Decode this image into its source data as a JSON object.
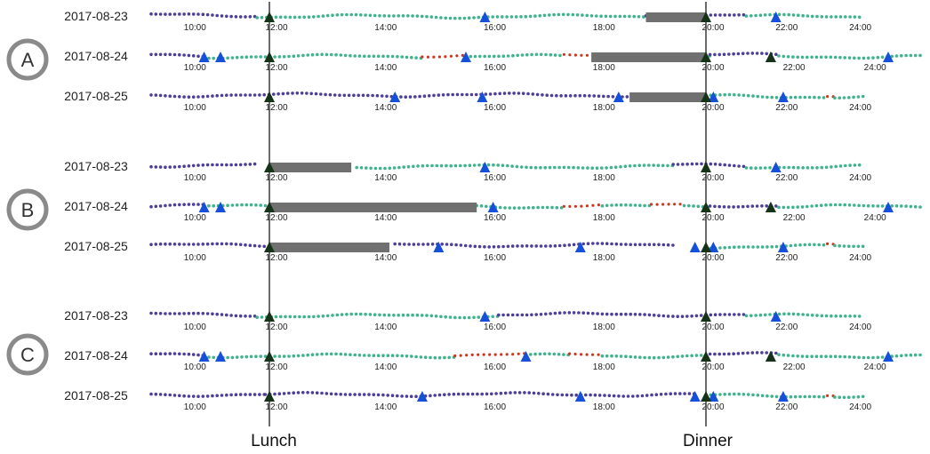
{
  "colors": {
    "purple": "#4b3f9a",
    "teal": "#3fb38c",
    "red": "#d0361f",
    "blue": "#1750d8",
    "black": "#173317",
    "bar": "#707070",
    "axis": "#3a3a3a",
    "circle": "#8a8a8a"
  },
  "meals": {
    "lunch": {
      "label": "Lunch"
    },
    "dinner": {
      "label": "Dinner"
    }
  },
  "panels": [
    {
      "letter": "A",
      "rows": [
        {
          "date": "2017-08-23",
          "start": 9.1,
          "end": 24.3,
          "ticks": [
            10,
            12,
            14,
            16,
            18,
            20,
            22,
            24
          ],
          "lunch": 12.0,
          "dinner": 20.0,
          "dinnerDate": 20.0,
          "dots": [
            [
              9.1,
              11.7,
              "purple"
            ],
            [
              11.7,
              18.9,
              "teal"
            ],
            [
              18.9,
              19.5,
              "purple"
            ],
            [
              20.0,
              21.1,
              "purple"
            ],
            [
              21.1,
              24.3,
              "teal"
            ]
          ],
          "blue": [
            15.95,
            21.9
          ],
          "black": [
            12.0,
            20.0
          ],
          "bar": [
            18.9,
            20.0
          ]
        },
        {
          "date": "2017-08-24",
          "start": 9.1,
          "end": 25.4,
          "ticks": [
            10,
            12,
            14,
            16,
            18,
            20,
            22,
            24
          ],
          "lunch": 12.0,
          "dinner": 20.0,
          "dots": [
            [
              9.1,
              10.4,
              "purple"
            ],
            [
              10.4,
              14.8,
              "teal"
            ],
            [
              14.8,
              15.6,
              "red"
            ],
            [
              15.6,
              17.4,
              "teal"
            ],
            [
              17.4,
              18.0,
              "red"
            ],
            [
              18.0,
              20.1,
              "teal"
            ],
            [
              20.1,
              21.8,
              "purple"
            ],
            [
              21.8,
              25.4,
              "teal"
            ]
          ],
          "blue": [
            10.4,
            10.8,
            15.6,
            21.6,
            24.5
          ],
          "black": [
            12.0,
            20.0,
            21.6
          ],
          "bar": [
            17.9,
            20.0
          ]
        },
        {
          "date": "2017-08-25",
          "start": 9.1,
          "end": 24.3,
          "ticks": [
            10,
            12,
            14,
            16,
            18,
            20,
            22,
            24
          ],
          "lunch": 12.0,
          "dinner": 20.0,
          "dots": [
            [
              9.1,
              18.7,
              "purple"
            ],
            [
              20.0,
              23.3,
              "teal"
            ],
            [
              23.3,
              23.5,
              "red"
            ],
            [
              23.5,
              24.3,
              "teal"
            ]
          ],
          "blue": [
            14.3,
            15.9,
            18.4,
            20.2,
            22.1
          ],
          "black": [
            12.0,
            20.0
          ],
          "bar": [
            18.6,
            20.0
          ]
        }
      ]
    },
    {
      "letter": "B",
      "rows": [
        {
          "date": "2017-08-23",
          "start": 9.1,
          "end": 24.3,
          "ticks": [
            10,
            12,
            14,
            16,
            18,
            20,
            22,
            24
          ],
          "lunch": 12.0,
          "dinner": 20.0,
          "dots": [
            [
              9.1,
              11.7,
              "purple"
            ],
            [
              13.6,
              19.4,
              "teal"
            ],
            [
              19.4,
              20.0,
              "purple"
            ],
            [
              20.0,
              21.1,
              "purple"
            ],
            [
              21.1,
              24.3,
              "teal"
            ]
          ],
          "blue": [
            15.95,
            21.9
          ],
          "black": [
            12.0,
            20.0
          ],
          "bar": [
            12.0,
            13.5
          ]
        },
        {
          "date": "2017-08-24",
          "start": 9.1,
          "end": 25.4,
          "ticks": [
            10,
            12,
            14,
            16,
            18,
            20,
            22,
            24
          ],
          "lunch": 12.0,
          "dinner": 20.0,
          "dots": [
            [
              9.1,
              10.4,
              "purple"
            ],
            [
              10.4,
              12.0,
              "teal"
            ],
            [
              15.8,
              17.4,
              "teal"
            ],
            [
              17.4,
              18.1,
              "red"
            ],
            [
              18.1,
              19.0,
              "teal"
            ],
            [
              19.0,
              19.6,
              "red"
            ],
            [
              19.6,
              20.1,
              "teal"
            ],
            [
              20.1,
              21.8,
              "purple"
            ],
            [
              21.8,
              25.4,
              "teal"
            ]
          ],
          "blue": [
            10.4,
            10.8,
            16.1,
            21.6,
            24.5
          ],
          "black": [
            12.0,
            20.0,
            21.6
          ],
          "bar": [
            12.0,
            15.8
          ]
        },
        {
          "date": "2017-08-25",
          "start": 9.1,
          "end": 24.3,
          "ticks": [
            10,
            12,
            14,
            16,
            18,
            20,
            22,
            24
          ],
          "lunch": 12.0,
          "dinner": 20.0,
          "dots": [
            [
              9.1,
              11.9,
              "purple"
            ],
            [
              14.3,
              19.4,
              "purple"
            ],
            [
              20.0,
              23.3,
              "teal"
            ],
            [
              23.3,
              23.5,
              "red"
            ],
            [
              23.5,
              24.3,
              "teal"
            ]
          ],
          "blue": [
            15.1,
            17.7,
            19.8,
            20.2,
            22.1
          ],
          "black": [
            12.0,
            20.0
          ],
          "bar": [
            12.0,
            14.2
          ]
        }
      ]
    },
    {
      "letter": "C",
      "rows": [
        {
          "date": "2017-08-23",
          "start": 9.1,
          "end": 24.3,
          "ticks": [
            10,
            12,
            14,
            16,
            18,
            20,
            22,
            24
          ],
          "lunch": 12.0,
          "dinner": 20.0,
          "dots": [
            [
              9.1,
              11.7,
              "purple"
            ],
            [
              11.7,
              16.2,
              "teal"
            ],
            [
              16.2,
              20.0,
              "purple"
            ],
            [
              20.0,
              21.1,
              "purple"
            ],
            [
              21.1,
              24.3,
              "teal"
            ]
          ],
          "blue": [
            15.95,
            21.9
          ],
          "black": [
            12.0,
            20.0
          ],
          "bar": null
        },
        {
          "date": "2017-08-24",
          "start": 9.1,
          "end": 25.4,
          "ticks": [
            10,
            12,
            14,
            16,
            18,
            20,
            22,
            24
          ],
          "lunch": 12.0,
          "dinner": 20.0,
          "dots": [
            [
              9.1,
              10.4,
              "purple"
            ],
            [
              10.4,
              15.4,
              "teal"
            ],
            [
              15.4,
              16.7,
              "red"
            ],
            [
              16.7,
              17.5,
              "teal"
            ],
            [
              17.5,
              18.1,
              "red"
            ],
            [
              18.1,
              20.1,
              "teal"
            ],
            [
              20.1,
              21.8,
              "purple"
            ],
            [
              21.8,
              25.4,
              "teal"
            ]
          ],
          "blue": [
            10.4,
            10.8,
            16.7,
            21.6,
            24.5
          ],
          "black": [
            12.0,
            20.0,
            21.6
          ],
          "bar": null
        },
        {
          "date": "2017-08-25",
          "start": 9.1,
          "end": 24.3,
          "ticks": [
            10,
            12,
            14,
            16,
            18,
            20,
            22,
            24
          ],
          "lunch": 12.0,
          "dinner": 20.0,
          "dots": [
            [
              9.1,
              11.9,
              "purple"
            ],
            [
              11.9,
              19.8,
              "purple"
            ],
            [
              20.0,
              23.3,
              "teal"
            ],
            [
              23.3,
              23.5,
              "red"
            ],
            [
              23.5,
              24.3,
              "teal"
            ]
          ],
          "blue": [
            14.8,
            17.7,
            19.8,
            20.2,
            22.1
          ],
          "black": [
            12.0,
            20.0
          ],
          "bar": null
        }
      ]
    }
  ]
}
